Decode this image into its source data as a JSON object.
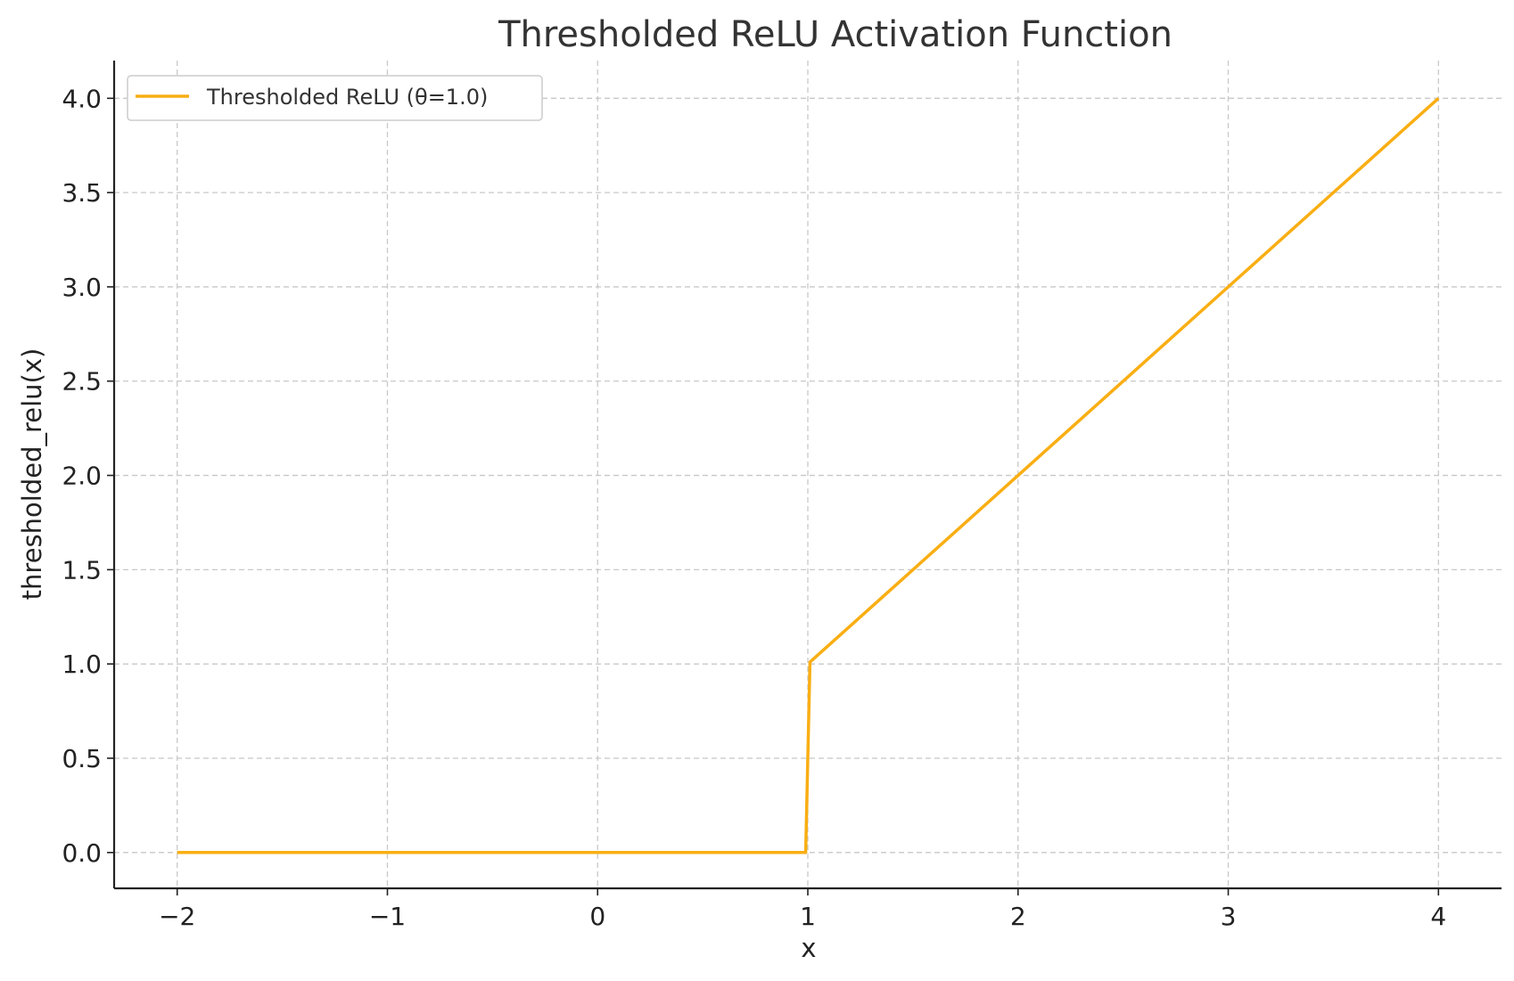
{
  "chart_data": {
    "type": "line",
    "title": "Thresholded ReLU Activation Function",
    "xlabel": "x",
    "ylabel": "thresholded_relu(x)",
    "xlim": [
      -2.3,
      4.3
    ],
    "ylim": [
      -0.19,
      4.2
    ],
    "xticks": [
      -2,
      -1,
      0,
      1,
      2,
      3,
      4
    ],
    "xtick_labels": [
      "−2",
      "−1",
      "0",
      "1",
      "2",
      "3",
      "4"
    ],
    "yticks": [
      0.0,
      0.5,
      1.0,
      1.5,
      2.0,
      2.5,
      3.0,
      3.5,
      4.0
    ],
    "ytick_labels": [
      "0.0",
      "0.5",
      "1.0",
      "1.5",
      "2.0",
      "2.5",
      "3.0",
      "3.5",
      "4.0"
    ],
    "grid": true,
    "legend_position": "top-left",
    "series": [
      {
        "name": "Thresholded ReLU (θ=1.0)",
        "color": "#F9AE13",
        "x": [
          -2,
          0.99,
          1.01,
          4
        ],
        "y": [
          0,
          0,
          1.01,
          4
        ]
      }
    ]
  }
}
